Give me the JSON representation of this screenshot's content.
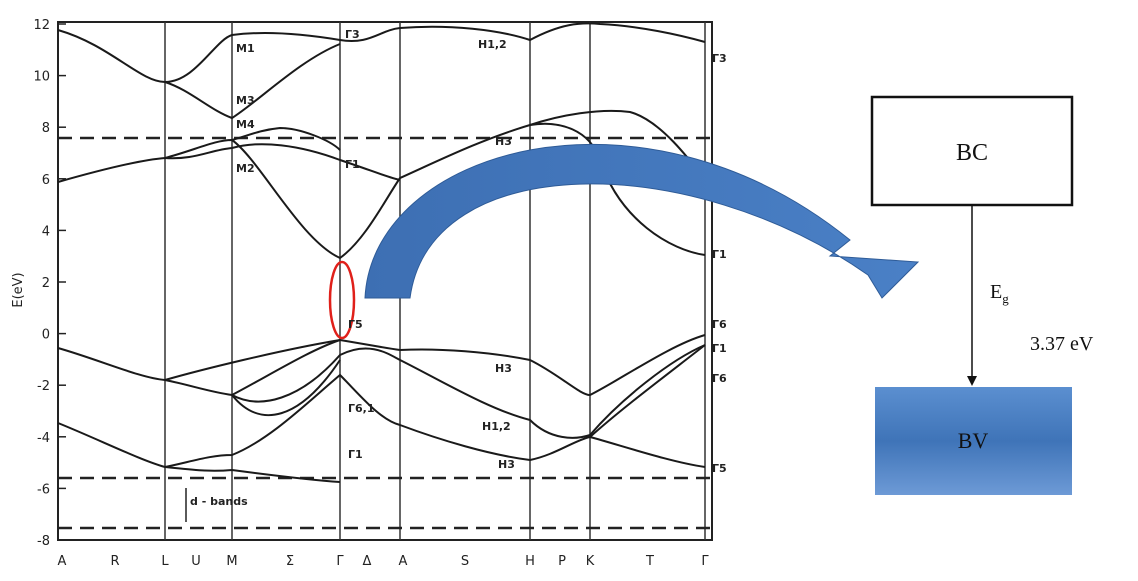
{
  "band_plot": {
    "y_label": "E(eV)",
    "ylim": [
      -8,
      12
    ],
    "yticks": [
      12,
      10,
      8,
      6,
      4,
      2,
      0,
      -2,
      -4,
      -6,
      -8
    ],
    "x_points": [
      "A",
      "R",
      "L",
      "U",
      "M",
      "Σ",
      "Γ",
      "Δ",
      "A",
      "S",
      "H",
      "P",
      "K",
      "T",
      "Γ"
    ],
    "point_labels": [
      "M1",
      "M3",
      "M4",
      "M2",
      "Γ3",
      "H1,2",
      "Γ3",
      "H3",
      "Γ1",
      "Γ3",
      "Γ1",
      "Γ5",
      "Γ6",
      "Γ1",
      "Γ6,1",
      "H3",
      "H1,2",
      "Γ6",
      "H3",
      "Γ1",
      "Γ5"
    ],
    "annotation": "d - bands"
  },
  "diagram": {
    "conduction_band": "BC",
    "gap_symbol": "E",
    "gap_subscript": "g",
    "gap_value": "3.37 eV",
    "valence_band": "BV"
  }
}
